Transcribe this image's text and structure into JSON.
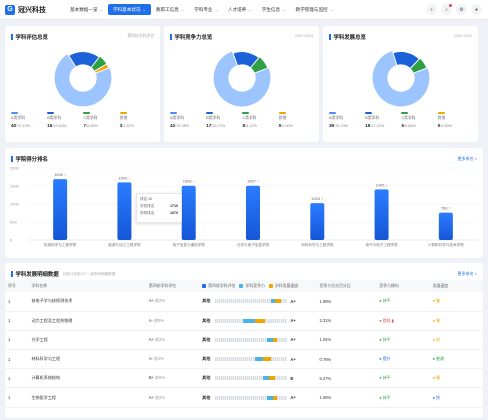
{
  "app": {
    "logo": "冠兴科技"
  },
  "nav": [
    {
      "label": "基本数据一览"
    },
    {
      "label": "学科基本状况",
      "active": true
    },
    {
      "label": "教职工信息"
    },
    {
      "label": "学科专业"
    },
    {
      "label": "人才培养"
    },
    {
      "label": "学生信息"
    },
    {
      "label": "教学管理与监控"
    }
  ],
  "tools": [
    {
      "icon": "search-icon"
    },
    {
      "icon": "bell-icon"
    },
    {
      "icon": "gear-icon"
    },
    {
      "icon": "user-icon"
    }
  ],
  "colors": {
    "primary": "#1f6feb",
    "a_plus": "#4d8dfb",
    "a": "#1b62d9",
    "b": "#2ea043",
    "other": "#f0a500",
    "light": "#9cc4ff"
  },
  "cards": [
    {
      "title": "学科评估总览",
      "extra": "第四轮学科评估",
      "slices": [
        72.1,
        19.63,
        6.05,
        2.57
      ],
      "legend": [
        {
          "label": "A类学科",
          "count": "40",
          "pct": "/72.10%"
        },
        {
          "label": "B类学科",
          "count": "16",
          "pct": "/19.63%"
        },
        {
          "label": "C类学科",
          "count": "7",
          "pct": "/6.05%"
        },
        {
          "label": "其他",
          "count": "3",
          "pct": "/2.57%"
        }
      ]
    },
    {
      "title": "学科竞争力总览",
      "extra": "2020-2023",
      "slices": [
        76.08,
        16.74,
        8.12,
        0.0
      ],
      "legend": [
        {
          "label": "A类学科",
          "count": "42",
          "pct": "/76.08%"
        },
        {
          "label": "B类学科",
          "count": "17",
          "pct": "/16.74%"
        },
        {
          "label": "C类学科",
          "count": "8",
          "pct": "/8.12%"
        },
        {
          "label": "其他",
          "count": "0",
          "pct": "/0.00%"
        }
      ]
    },
    {
      "title": "学科发展总览",
      "extra": "2020-2023",
      "slices": [
        76.23,
        17.22,
        6.88,
        0.0
      ],
      "legend": [
        {
          "label": "A类学科",
          "count": "39",
          "pct": "/76.23%"
        },
        {
          "label": "B类学科",
          "count": "15",
          "pct": "/17.22%"
        },
        {
          "label": "C类学科",
          "count": "5",
          "pct": "/6.88%"
        },
        {
          "label": "其他",
          "count": "0",
          "pct": "/0.00%"
        }
      ]
    }
  ],
  "ranking": {
    "title": "学院得分排名",
    "link": "更多排名 >",
    "chart_data": {
      "type": "bar",
      "categories": [
        "机械科学与工程学院",
        "能源与动力工程学院",
        "电子信息与通信学院",
        "光学与电子信息学院",
        "材料科学与工程学院",
        "电气与电子工程学院",
        "计算机科学与技术学院"
      ],
      "values": [
        1690,
        1600,
        1508,
        1507,
        1024,
        1405,
        760
      ],
      "labels": [
        "1690 ↑",
        "1600 ↓",
        "1508 ↓",
        "1507 ↑",
        "1024 ↑",
        "1405 ↓",
        "760 ↑"
      ],
      "ylim": [
        0,
        2000
      ],
      "yticks": [
        "2000",
        "1500",
        "1000",
        "500",
        "0"
      ]
    },
    "tooltip": {
      "title": "排名 46",
      "rows": [
        {
          "k": "学校排名",
          "v": "1710"
        },
        {
          "k": "学院排名",
          "v": "1670"
        }
      ]
    }
  },
  "detail": {
    "title": "学科发展明细数据",
    "note": "共统计本校477一级学科明细数据",
    "link": "更多排名 >",
    "legend": [
      {
        "label": "第四轮学科评估",
        "color": "#1f6feb"
      },
      {
        "label": "学科竞争力",
        "color": "#48b4e8"
      },
      {
        "label": "学科发展速度",
        "color": "#f0a500"
      }
    ],
    "headers": [
      "序号",
      "学科名称",
      "第四轮学科评估",
      "学科发展态势",
      "竞争力位次百分比",
      "竞争力横向",
      "发展速度"
    ],
    "rows": [
      {
        "no": "1",
        "name": "核电子学与核探测技术",
        "grade": "A+",
        "rank": "前2%",
        "other": "其他",
        "g": "A+",
        "pct": "1.98%",
        "comp": "● 持平",
        "dev": "● 慢",
        "cc": "#2ea043",
        "dc": "#f0a500",
        "b": [
          66,
          6,
          4
        ]
      },
      {
        "no": "1",
        "name": "动力工程及工程热物理",
        "grade": "A-",
        "rank": "前5%",
        "other": "其他",
        "g": "A+",
        "pct": "2.31%",
        "comp": "● 提档 ▮",
        "dev": "● 慢",
        "cc": "#e5484d",
        "dc": "#f0a500",
        "b": [
          50,
          10,
          12
        ]
      },
      {
        "no": "1",
        "name": "光学工程",
        "grade": "A+",
        "rank": "前2%",
        "other": "其他",
        "g": "A+",
        "pct": "1.04%",
        "comp": "● 持平",
        "dev": "● 快",
        "cc": "#2ea043",
        "dc": "#f0a500",
        "b": [
          62,
          4,
          6
        ]
      },
      {
        "no": "1",
        "name": "材料科学与工程",
        "grade": "A-",
        "rank": "前1%",
        "other": "其他",
        "g": "A+",
        "pct": "0.76%",
        "comp": "● 提升",
        "dev": "● 普通",
        "cc": "#1f6feb",
        "dc": "#2ea043",
        "b": [
          56,
          8,
          8
        ]
      },
      {
        "no": "1",
        "name": "计算机系统结构",
        "grade": "B+",
        "rank": "前6%",
        "other": "其他",
        "g": "B",
        "pct": "5.27%",
        "comp": "● 持平",
        "dev": "● 慢",
        "cc": "#2ea043",
        "dc": "#f0a500",
        "b": [
          60,
          6,
          6
        ]
      },
      {
        "no": "1",
        "name": "生物医学工程",
        "grade": "A+",
        "rank": "前2%",
        "other": "其他",
        "g": "A+",
        "pct": "1.66%",
        "comp": "● 持平",
        "dev": "● 快",
        "cc": "#2ea043",
        "dc": "#1f6feb",
        "b": [
          62,
          4,
          6
        ]
      }
    ]
  }
}
